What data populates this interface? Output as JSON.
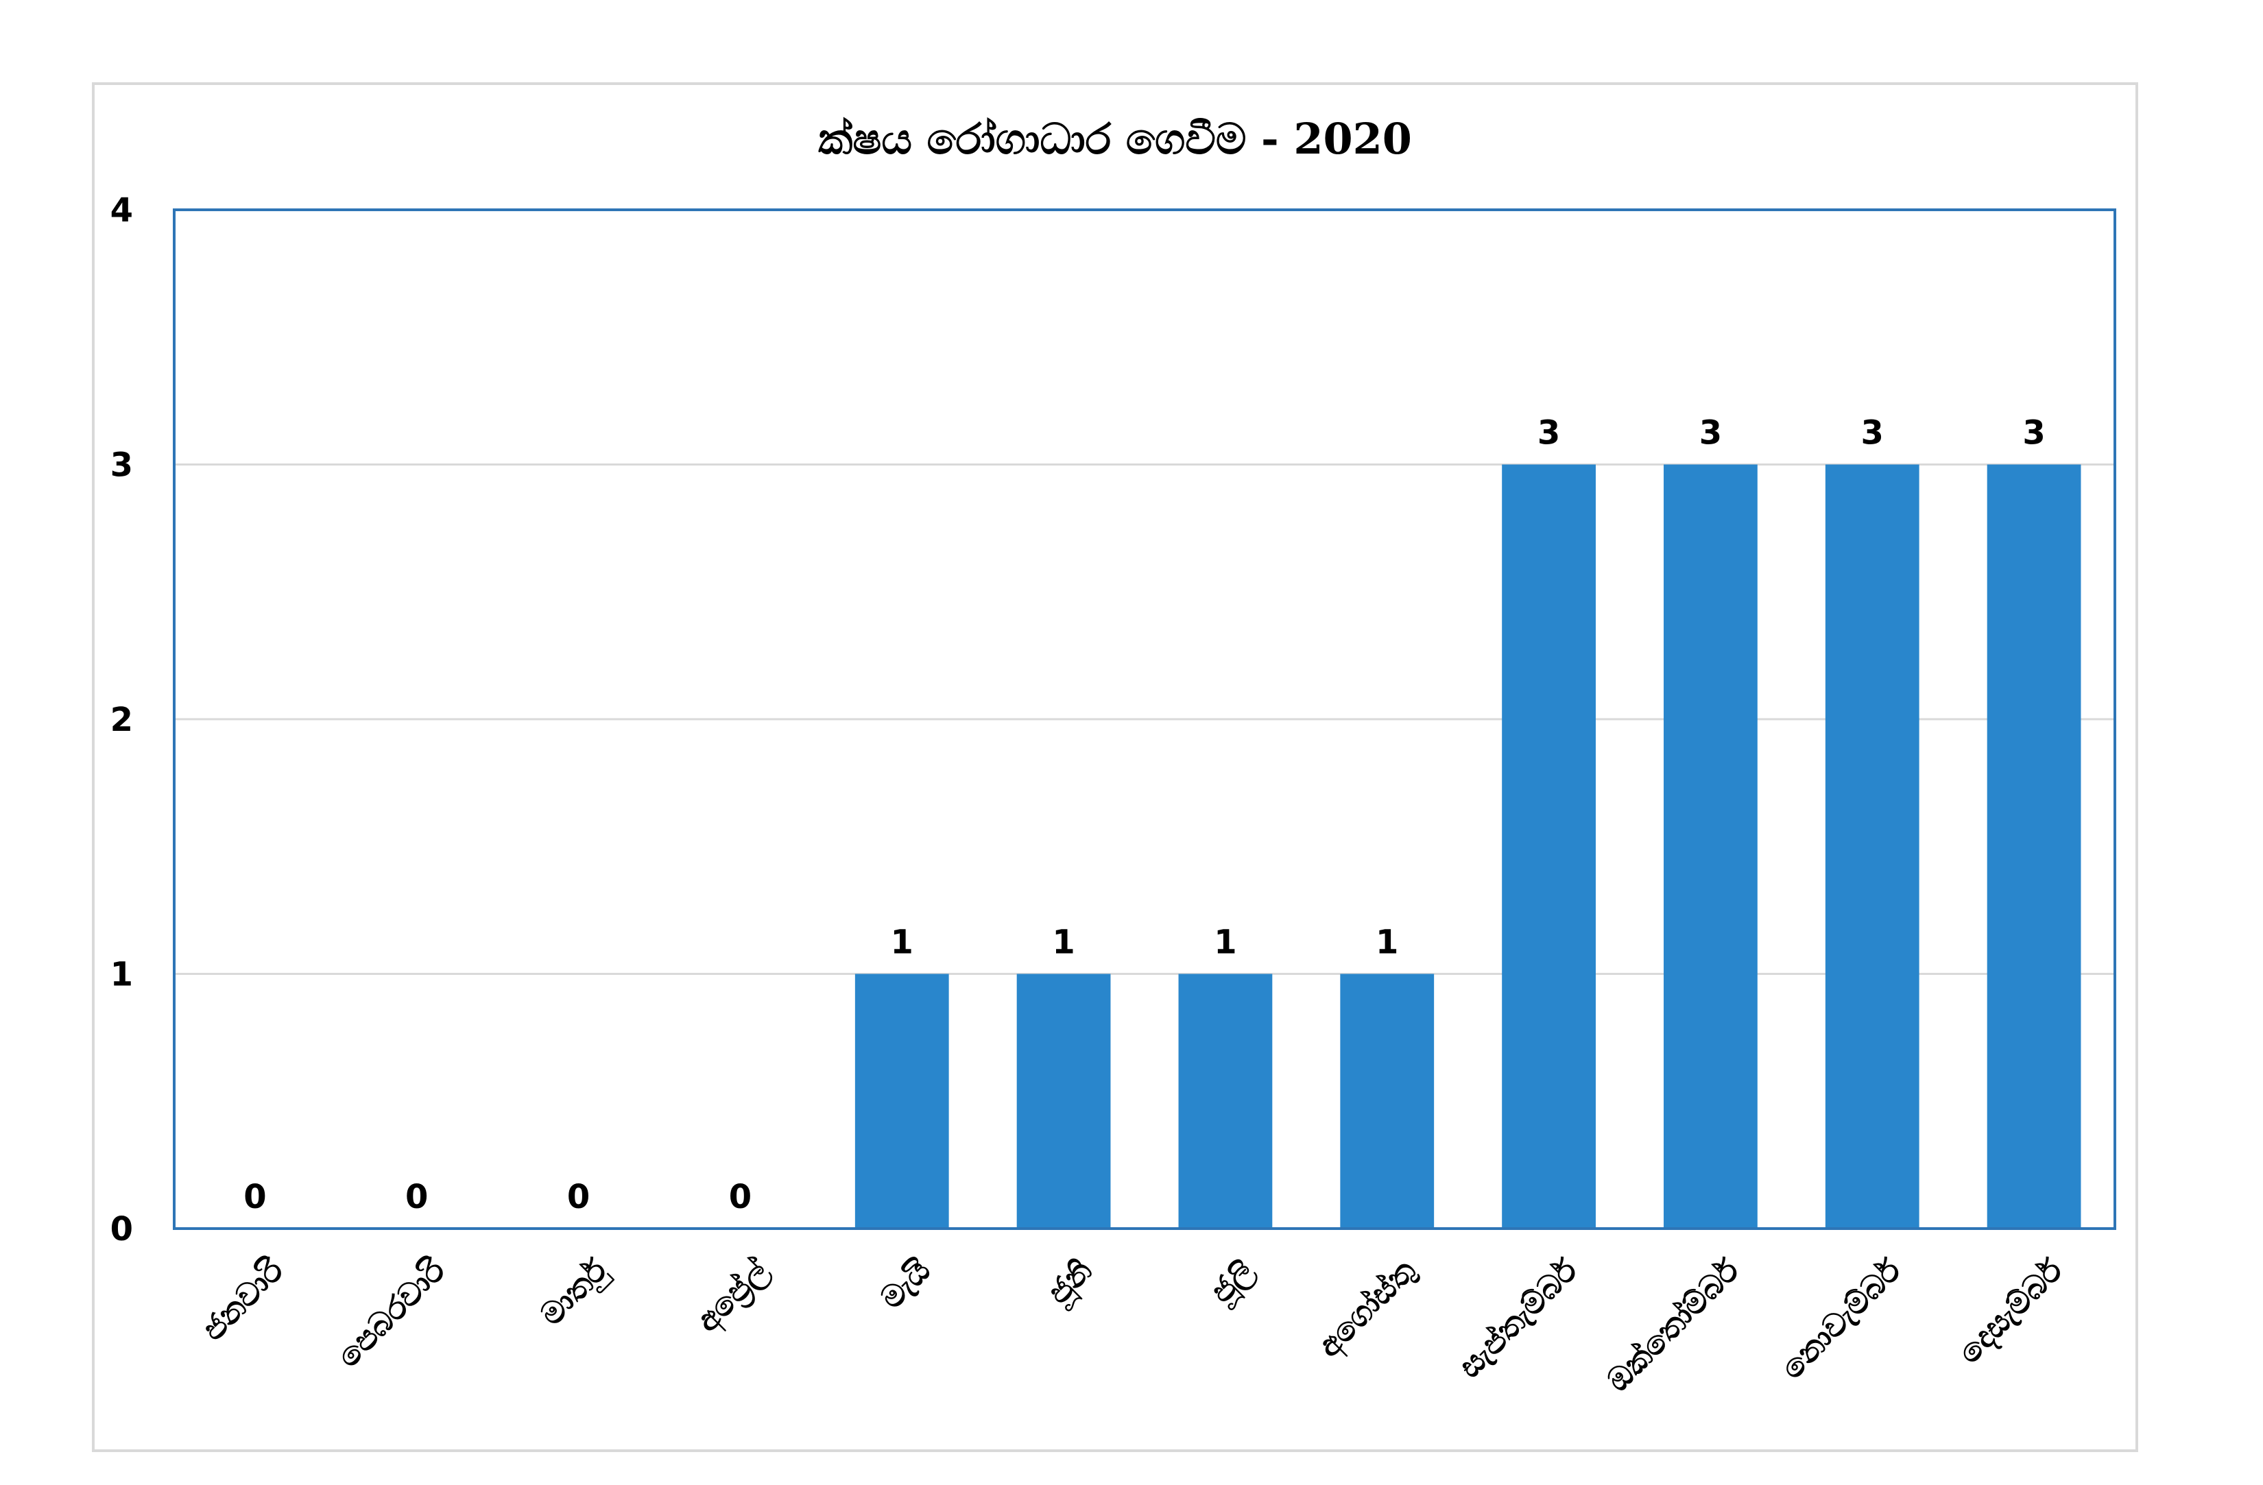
{
  "chart_data": {
    "type": "bar",
    "title": "ක්ෂය රෝගාධාර ගෙවීම - 2020",
    "xlabel": "",
    "ylabel": "",
    "categories": [
      "ජනවාරි",
      "පෙබරවාරි",
      "මාර්තු",
      "අප්‍රේල්",
      "මැයි",
      "ජූනි",
      "ජූලි",
      "අගෝස්තු",
      "සැප්තැම්බර්",
      "ඔක්තෝම්බර්",
      "නොවැම්බර්",
      "දෙසැම්බර්"
    ],
    "values": [
      0,
      0,
      0,
      0,
      1,
      1,
      1,
      1,
      3,
      3,
      3,
      3
    ],
    "ylim": [
      0,
      4
    ],
    "yticks": [
      "0",
      "1",
      "2",
      "3",
      "4"
    ],
    "grid": true,
    "data_labels": true,
    "legend": "none",
    "colors": {
      "bar": "#2986cc",
      "plot_border": "#2e75b6",
      "grid": "#d9d9d9",
      "frame": "#d9d9d9"
    }
  }
}
